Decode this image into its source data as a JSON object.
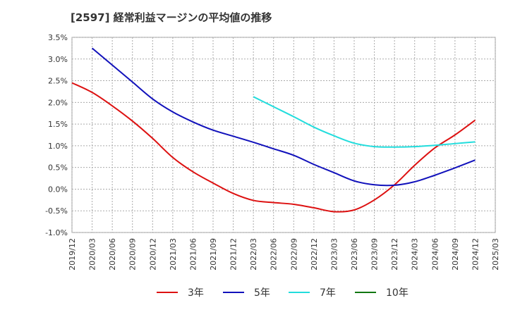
{
  "chart_data": {
    "type": "line",
    "title": "[2597]  経常利益マージンの平均値の推移",
    "xlabel": "",
    "ylabel": "",
    "ylim": [
      -1.0,
      3.5
    ],
    "yticks": [
      3.5,
      3.0,
      2.5,
      2.0,
      1.5,
      1.0,
      0.5,
      0.0,
      -0.5,
      -1.0
    ],
    "ytick_labels": [
      "3.5%",
      "3.0%",
      "2.5%",
      "2.0%",
      "1.5%",
      "1.0%",
      "0.5%",
      "0.0%",
      "-0.5%",
      "-1.0%"
    ],
    "x_ticks": [
      "2019/12",
      "2020/03",
      "2020/06",
      "2020/09",
      "2020/12",
      "2021/03",
      "2021/06",
      "2021/09",
      "2021/12",
      "2022/03",
      "2022/06",
      "2022/09",
      "2022/12",
      "2023/03",
      "2023/06",
      "2023/09",
      "2023/12",
      "2024/03",
      "2024/06",
      "2024/09",
      "2024/12",
      "2025/03"
    ],
    "grid": true,
    "legend": "bottom",
    "series": [
      {
        "name": "3年",
        "color": "#dd1111",
        "x": [
          "2019/12",
          "2020/03",
          "2020/06",
          "2020/09",
          "2020/12",
          "2021/03",
          "2021/06",
          "2021/09",
          "2021/12",
          "2022/03",
          "2022/06",
          "2022/09",
          "2022/12",
          "2023/03",
          "2023/06",
          "2023/09",
          "2023/12",
          "2024/03",
          "2024/06",
          "2024/09",
          "2024/12"
        ],
        "values": [
          2.45,
          2.23,
          1.92,
          1.57,
          1.17,
          0.73,
          0.4,
          0.14,
          -0.1,
          -0.26,
          -0.31,
          -0.35,
          -0.43,
          -0.52,
          -0.48,
          -0.25,
          0.1,
          0.55,
          0.95,
          1.25,
          1.59
        ]
      },
      {
        "name": "5年",
        "color": "#1111bb",
        "x": [
          "2020/03",
          "2020/06",
          "2020/09",
          "2020/12",
          "2021/03",
          "2021/06",
          "2021/09",
          "2021/12",
          "2022/03",
          "2022/06",
          "2022/09",
          "2022/12",
          "2023/03",
          "2023/06",
          "2023/09",
          "2023/12",
          "2024/03",
          "2024/06",
          "2024/09",
          "2024/12"
        ],
        "values": [
          3.25,
          2.86,
          2.47,
          2.08,
          1.78,
          1.55,
          1.36,
          1.22,
          1.08,
          0.93,
          0.78,
          0.57,
          0.38,
          0.19,
          0.1,
          0.09,
          0.17,
          0.32,
          0.49,
          0.67
        ]
      },
      {
        "name": "7年",
        "color": "#22dddd",
        "x": [
          "2022/03",
          "2022/06",
          "2022/09",
          "2022/12",
          "2023/03",
          "2023/06",
          "2023/09",
          "2023/12",
          "2024/03",
          "2024/06",
          "2024/09",
          "2024/12"
        ],
        "values": [
          2.13,
          1.9,
          1.67,
          1.43,
          1.23,
          1.06,
          0.98,
          0.97,
          0.98,
          1.01,
          1.05,
          1.09
        ]
      },
      {
        "name": "10年",
        "color": "#117711",
        "x": [],
        "values": []
      }
    ]
  }
}
